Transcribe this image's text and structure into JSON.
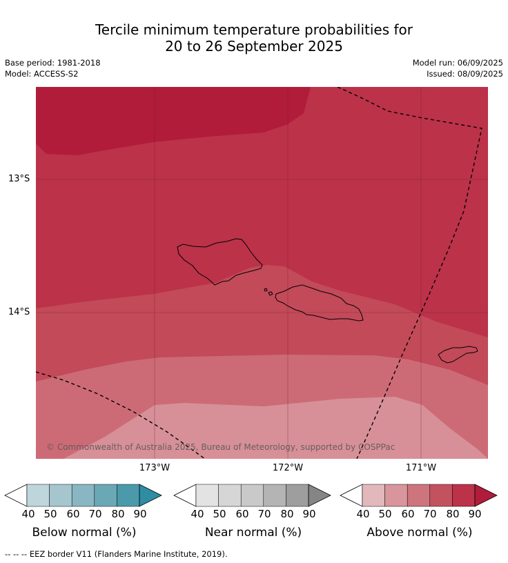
{
  "title": {
    "line1": "Tercile minimum temperature probabilities for",
    "line2": "20 to 26 September 2025"
  },
  "meta": {
    "base_period": "Base period: 1981-2018",
    "model": "Model: ACCESS-S2",
    "model_run": "Model run: 06/09/2025",
    "issued": "Issued: 08/09/2025"
  },
  "map": {
    "lat_labels": [
      "13°S",
      "14°S"
    ],
    "lon_labels": [
      "173°W",
      "172°W",
      "171°W"
    ],
    "copyright": "© Commonwealth of Australia 2025, Bureau of Meteorology, supported by COSPPac",
    "colors": {
      "above_90": "#b01c3a",
      "above_80": "#bb3249",
      "above_70": "#c24a59",
      "above_60": "#cc6b76",
      "above_50": "#d79097",
      "border": "#000000"
    }
  },
  "legends": [
    {
      "label": "Below normal (%)",
      "ticks": [
        "40",
        "50",
        "60",
        "70",
        "80",
        "90"
      ],
      "colors": [
        "#ffffff",
        "#bfd5dc",
        "#a6c6cf",
        "#89b6c2",
        "#6aa8b6",
        "#4a9aab",
        "#2e8da2"
      ]
    },
    {
      "label": "Near normal (%)",
      "ticks": [
        "40",
        "50",
        "60",
        "70",
        "80",
        "90"
      ],
      "colors": [
        "#ffffff",
        "#e3e3e3",
        "#d6d6d6",
        "#c9c9c9",
        "#b4b4b4",
        "#9e9e9e",
        "#858585"
      ]
    },
    {
      "label": "Above normal (%)",
      "ticks": [
        "40",
        "50",
        "60",
        "70",
        "80",
        "90"
      ],
      "colors": [
        "#ffffff",
        "#e2b8bd",
        "#d8959c",
        "#cd747d",
        "#c3525f",
        "#bb3249",
        "#b01c3a"
      ]
    }
  ],
  "footer": "--  --  -- EEZ border V11 (Flanders Marine Institute, 2019)."
}
